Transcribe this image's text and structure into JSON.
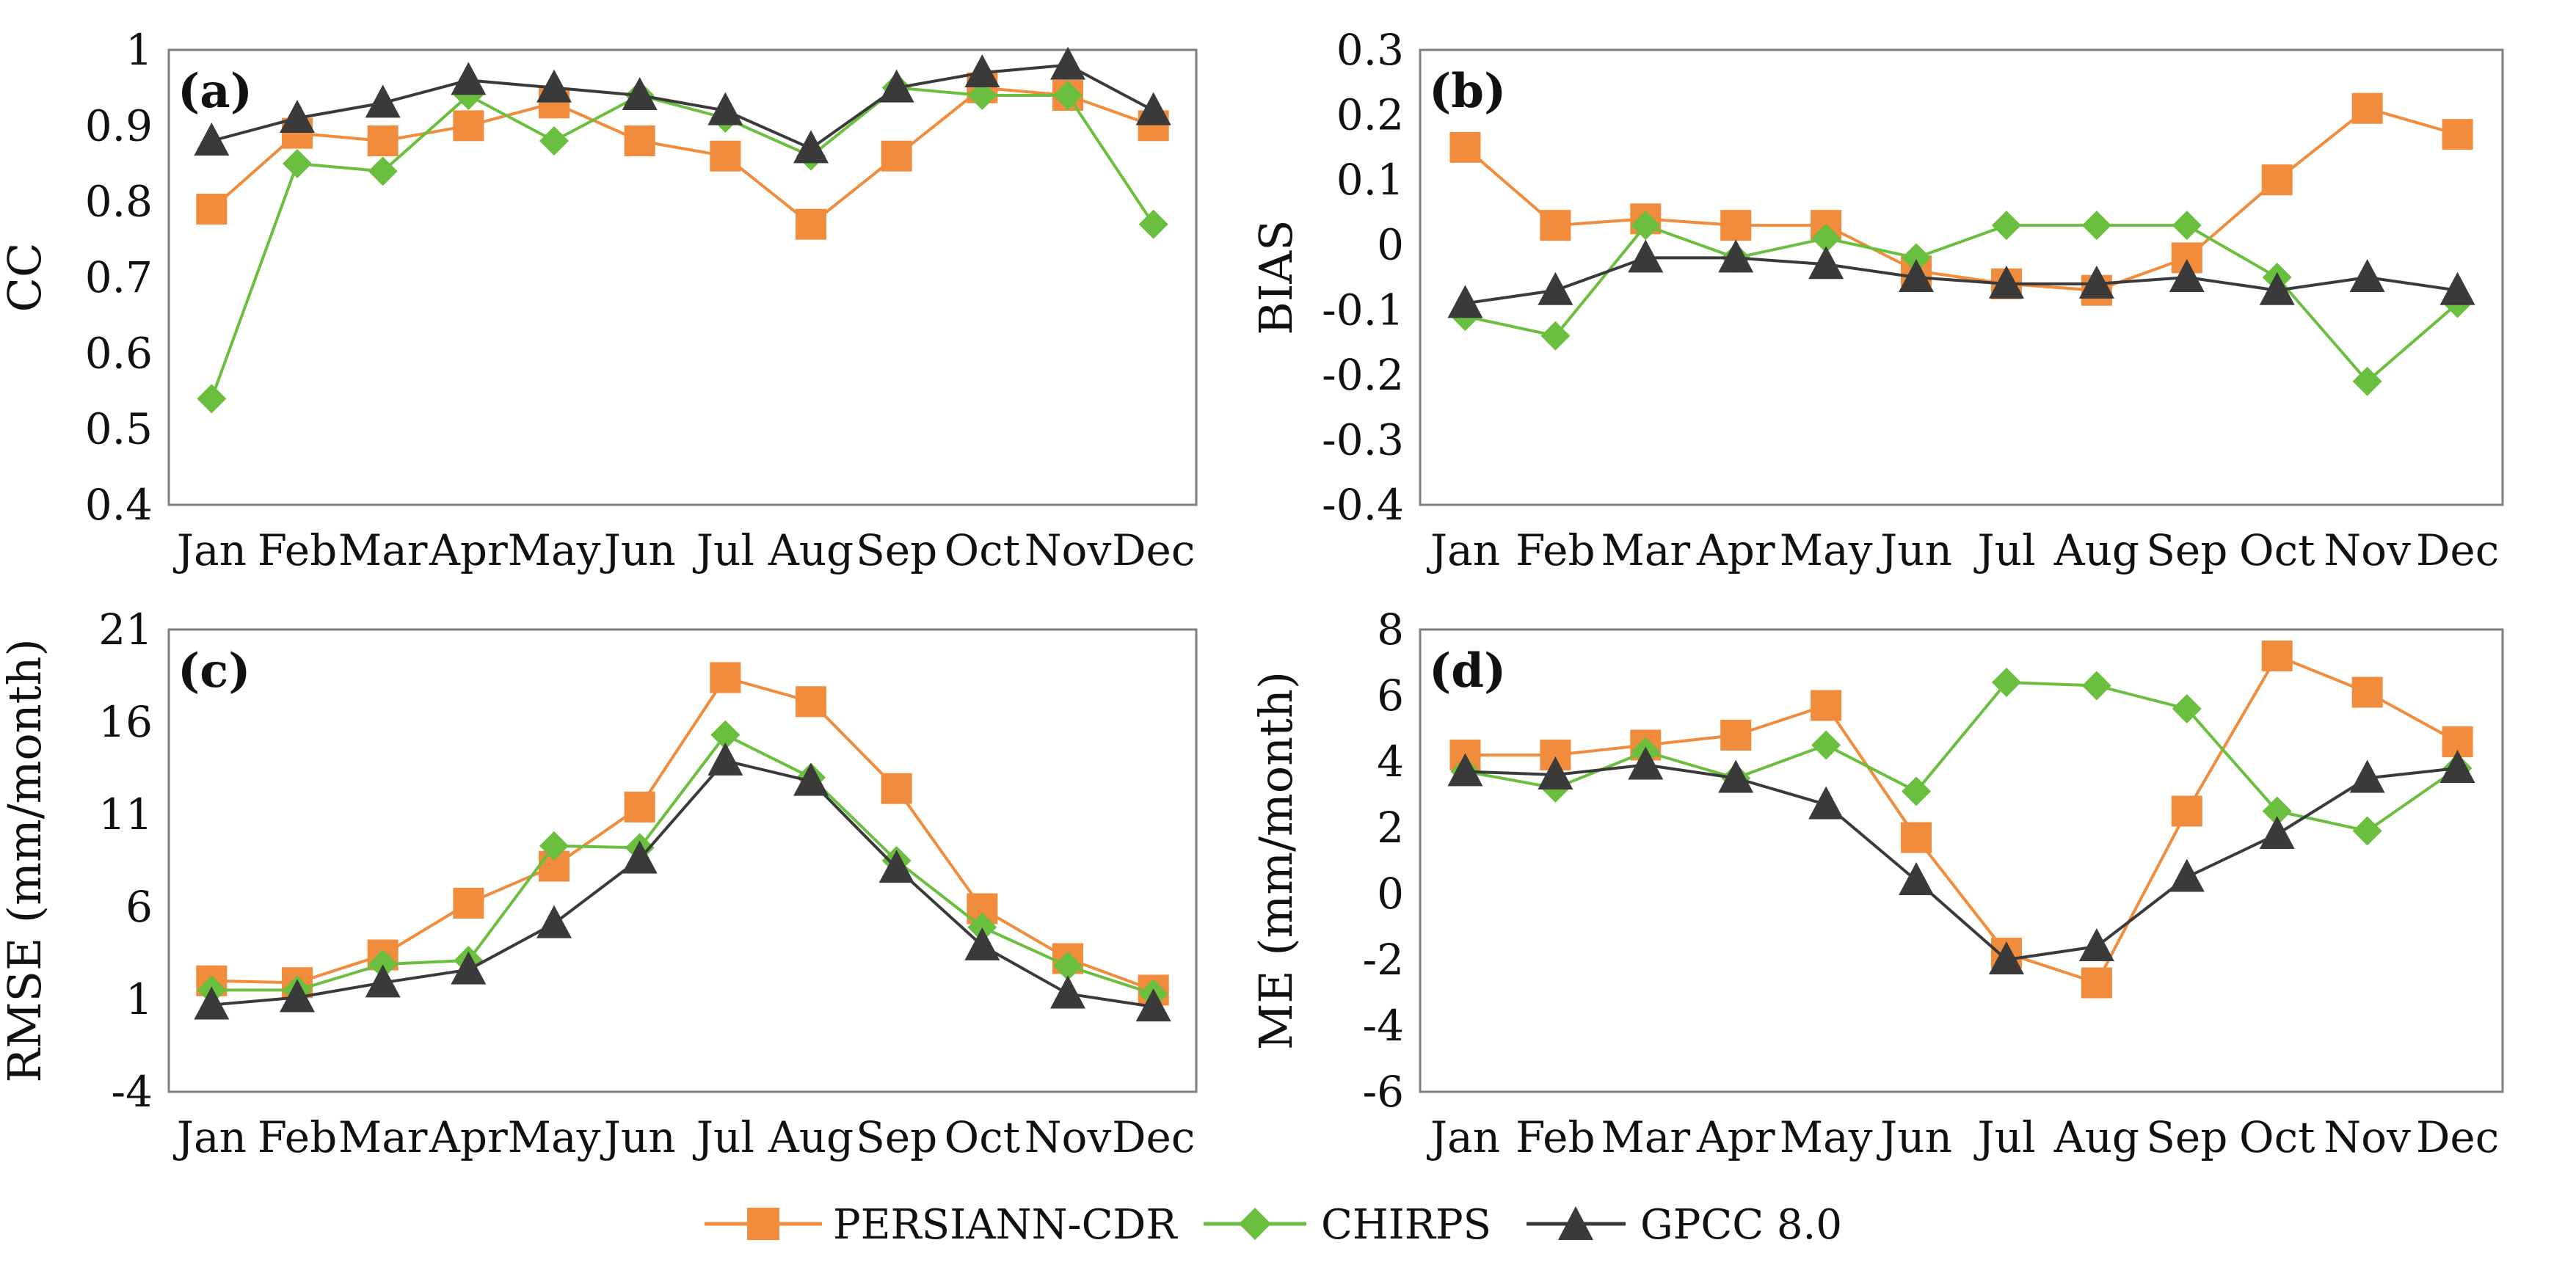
{
  "legend": {
    "entries": [
      {
        "name": "PERSIANN-CDR",
        "color": "#f08c3c",
        "marker": "square"
      },
      {
        "name": "CHIRPS",
        "color": "#6bbf3e",
        "marker": "diamond"
      },
      {
        "name": "GPCC 8.0",
        "color": "#3a3a3a",
        "marker": "triangle"
      }
    ]
  },
  "chart_data": [
    {
      "type": "line",
      "panel_label": "(a)",
      "ylabel": "CC",
      "categories": [
        "Jan",
        "Feb",
        "Mar",
        "Apr",
        "May",
        "Jun",
        "Jul",
        "Aug",
        "Sep",
        "Oct",
        "Nov",
        "Dec"
      ],
      "ylim": [
        0.4,
        1.0
      ],
      "yticks": [
        "0.4",
        "0.5",
        "0.6",
        "0.7",
        "0.8",
        "0.9",
        "1"
      ],
      "yticks_values": [
        0.4,
        0.5,
        0.6,
        0.7,
        0.8,
        0.9,
        1.0
      ],
      "series": [
        {
          "name": "PERSIANN-CDR",
          "values": [
            0.79,
            0.89,
            0.88,
            0.9,
            0.93,
            0.88,
            0.86,
            0.77,
            0.86,
            0.95,
            0.94,
            0.9
          ]
        },
        {
          "name": "CHIRPS",
          "values": [
            0.54,
            0.85,
            0.84,
            0.94,
            0.88,
            0.94,
            0.91,
            0.86,
            0.95,
            0.94,
            0.94,
            0.77
          ]
        },
        {
          "name": "GPCC 8.0",
          "values": [
            0.88,
            0.91,
            0.93,
            0.96,
            0.95,
            0.94,
            0.92,
            0.87,
            0.95,
            0.97,
            0.98,
            0.92
          ]
        }
      ]
    },
    {
      "type": "line",
      "panel_label": "(b)",
      "ylabel": "BIAS",
      "categories": [
        "Jan",
        "Feb",
        "Mar",
        "Apr",
        "May",
        "Jun",
        "Jul",
        "Aug",
        "Sep",
        "Oct",
        "Nov",
        "Dec"
      ],
      "ylim": [
        -0.4,
        0.3
      ],
      "yticks": [
        "-0.4",
        "-0.3",
        "-0.2",
        "-0.1",
        "0",
        "0.1",
        "0.2",
        "0.3"
      ],
      "yticks_values": [
        -0.4,
        -0.3,
        -0.2,
        -0.1,
        0,
        0.1,
        0.2,
        0.3
      ],
      "series": [
        {
          "name": "PERSIANN-CDR",
          "values": [
            0.15,
            0.03,
            0.04,
            0.03,
            0.03,
            -0.04,
            -0.06,
            -0.07,
            -0.02,
            0.1,
            0.21,
            0.17
          ]
        },
        {
          "name": "CHIRPS",
          "values": [
            -0.11,
            -0.14,
            0.03,
            -0.02,
            0.01,
            -0.02,
            0.03,
            0.03,
            0.03,
            -0.05,
            -0.21,
            -0.09
          ]
        },
        {
          "name": "GPCC 8.0",
          "values": [
            -0.09,
            -0.07,
            -0.02,
            -0.02,
            -0.03,
            -0.05,
            -0.06,
            -0.06,
            -0.05,
            -0.07,
            -0.05,
            -0.07
          ]
        }
      ]
    },
    {
      "type": "line",
      "panel_label": "(c)",
      "ylabel": "RMSE (mm/month)",
      "categories": [
        "Jan",
        "Feb",
        "Mar",
        "Apr",
        "May",
        "Jun",
        "Jul",
        "Aug",
        "Sep",
        "Oct",
        "Nov",
        "Dec"
      ],
      "ylim": [
        -4,
        21
      ],
      "yticks": [
        "-4",
        "1",
        "6",
        "11",
        "16",
        "21"
      ],
      "yticks_values": [
        -4,
        1,
        6,
        11,
        16,
        21
      ],
      "series": [
        {
          "name": "PERSIANN-CDR",
          "values": [
            2.0,
            1.9,
            3.4,
            6.2,
            8.2,
            11.4,
            18.4,
            17.1,
            12.4,
            5.9,
            3.2,
            1.5
          ]
        },
        {
          "name": "CHIRPS",
          "values": [
            1.5,
            1.5,
            2.9,
            3.1,
            9.3,
            9.2,
            15.3,
            13.0,
            8.5,
            4.9,
            2.8,
            1.3
          ]
        },
        {
          "name": "GPCC 8.0",
          "values": [
            0.7,
            1.1,
            1.9,
            2.6,
            5.1,
            8.6,
            13.9,
            12.8,
            8.1,
            3.9,
            1.3,
            0.6
          ]
        }
      ]
    },
    {
      "type": "line",
      "panel_label": "(d)",
      "ylabel": "ME (mm/month)",
      "categories": [
        "Jan",
        "Feb",
        "Mar",
        "Apr",
        "May",
        "Jun",
        "Jul",
        "Aug",
        "Sep",
        "Oct",
        "Nov",
        "Dec"
      ],
      "ylim": [
        -6,
        8
      ],
      "yticks": [
        "-6",
        "-4",
        "-2",
        "0",
        "2",
        "4",
        "6",
        "8"
      ],
      "yticks_values": [
        -6,
        -4,
        -2,
        0,
        2,
        4,
        6,
        8
      ],
      "series": [
        {
          "name": "PERSIANN-CDR",
          "values": [
            4.2,
            4.2,
            4.5,
            4.8,
            5.7,
            1.7,
            -1.8,
            -2.7,
            2.5,
            7.2,
            6.1,
            4.6
          ]
        },
        {
          "name": "CHIRPS",
          "values": [
            3.7,
            3.2,
            4.3,
            3.5,
            4.5,
            3.1,
            6.4,
            6.3,
            5.6,
            2.5,
            1.9,
            3.8
          ]
        },
        {
          "name": "GPCC 8.0",
          "values": [
            3.7,
            3.6,
            3.9,
            3.5,
            2.7,
            0.4,
            -2.0,
            -1.6,
            0.5,
            1.8,
            3.5,
            3.8
          ]
        }
      ]
    }
  ]
}
